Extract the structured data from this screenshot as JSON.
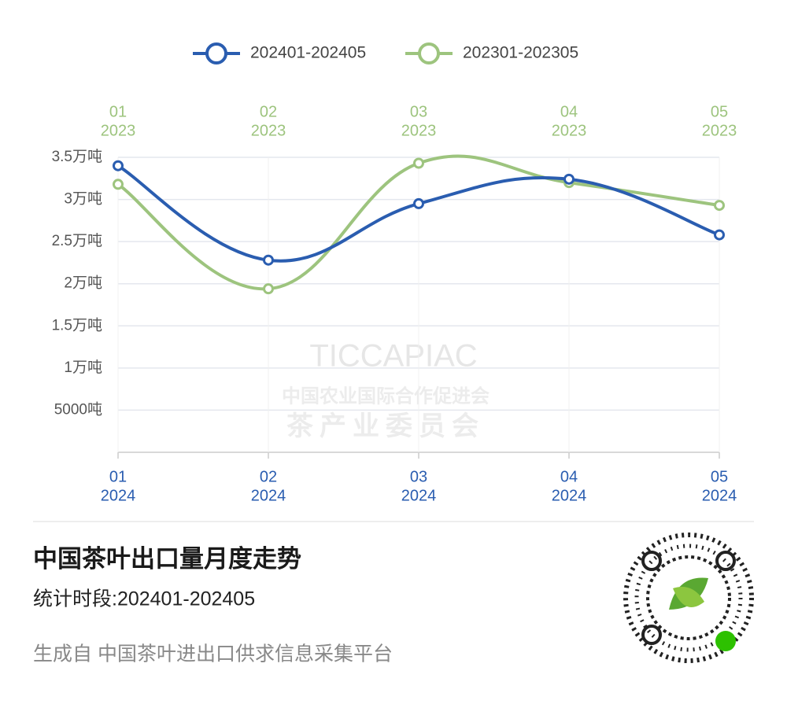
{
  "chart_data": {
    "type": "line",
    "categories": [
      "01",
      "02",
      "03",
      "04",
      "05"
    ],
    "x_year": "2024",
    "x2_categories": [
      "01",
      "02",
      "03",
      "04",
      "05"
    ],
    "x2_year": "2023",
    "series": [
      {
        "name": "202401-202405",
        "color": "#2a5db0",
        "values": [
          34000,
          22800,
          29500,
          32400,
          25800
        ]
      },
      {
        "name": "202301-202305",
        "color": "#9dc47e",
        "values": [
          31800,
          19400,
          34300,
          32000,
          29300
        ]
      }
    ],
    "ylim": [
      0,
      35000
    ],
    "yticks": [
      {
        "value": 5000,
        "label": "5000吨"
      },
      {
        "value": 10000,
        "label": "1万吨"
      },
      {
        "value": 15000,
        "label": "1.5万吨"
      },
      {
        "value": 20000,
        "label": "2万吨"
      },
      {
        "value": 25000,
        "label": "2.5万吨"
      },
      {
        "value": 30000,
        "label": "3万吨"
      },
      {
        "value": 35000,
        "label": "3.5万吨"
      }
    ],
    "grid": true,
    "legend": "top",
    "watermark": [
      "TICCAPIAC",
      "中国农业国际合作促进会",
      "茶产业委员会"
    ]
  },
  "title": "中国茶叶出口量月度走势",
  "subtitle": "统计时段:202401-202405",
  "footer": "生成自 中国茶叶进出口供求信息采集平台"
}
